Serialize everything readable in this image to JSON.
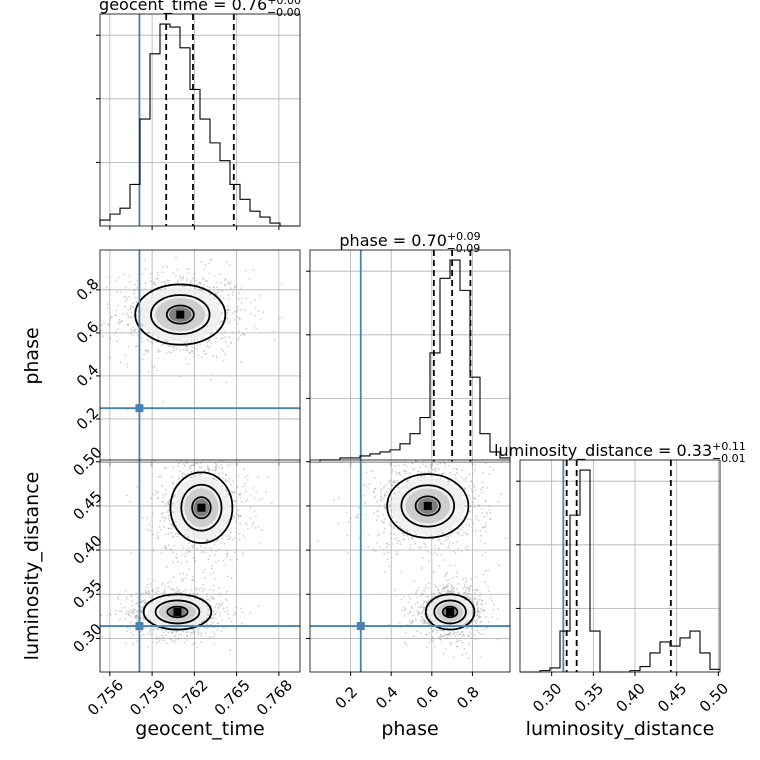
{
  "chart_data": {
    "type": "corner",
    "grid": true,
    "truth_color": "#4682b4",
    "params": [
      {
        "key": "geocent_time",
        "label": "geocent_time",
        "range": [
          0.7553,
          0.7695
        ],
        "ticks": [
          0.756,
          0.759,
          0.762,
          0.765,
          0.768
        ],
        "tick_labels": [
          "0.756",
          "0.759",
          "0.762",
          "0.765",
          "0.768"
        ],
        "truth": 0.7581,
        "title": {
          "main": "geocent_time = 0.76",
          "sup": "+0.00",
          "sub": "−0.00"
        },
        "quantiles": [
          0.76,
          0.7619,
          0.7648
        ],
        "hist": {
          "edges_start": 0.7553,
          "bin_width": 0.00071,
          "counts": [
            2,
            4,
            6,
            14,
            36,
            58,
            68,
            67,
            60,
            46,
            36,
            28,
            22,
            14,
            9,
            5,
            3,
            1,
            0,
            0
          ]
        }
      },
      {
        "key": "phase",
        "label": "phase",
        "range": [
          0.0,
          0.985
        ],
        "ticks": [
          0.2,
          0.4,
          0.6,
          0.8
        ],
        "tick_labels": [
          "0.2",
          "0.4",
          "0.6",
          "0.8"
        ],
        "truth": 0.25,
        "title": {
          "main": "phase = 0.70",
          "sup": "+0.09",
          "sub": "−0.09"
        },
        "quantiles": [
          0.61,
          0.7,
          0.79
        ],
        "hist": {
          "edges_start": 0.0,
          "bin_width": 0.04925,
          "counts": [
            0,
            1,
            1,
            2,
            2,
            3,
            4,
            5,
            6,
            9,
            14,
            22,
            54,
            91,
            100,
            85,
            42,
            14,
            5,
            2
          ]
        }
      },
      {
        "key": "luminosity_distance",
        "label": "luminosity_distance",
        "range": [
          0.262,
          0.502
        ],
        "ticks": [
          0.3,
          0.35,
          0.4,
          0.45,
          0.5
        ],
        "tick_labels": [
          "0.30",
          "0.35",
          "0.40",
          "0.45",
          "0.50"
        ],
        "truth": 0.314,
        "title": {
          "main": "luminosity_distance = 0.33",
          "sup": "+0.11",
          "sub": "−0.01"
        },
        "quantiles": [
          0.318,
          0.33,
          0.443
        ],
        "hist": {
          "edges_start": 0.262,
          "bin_width": 0.012,
          "counts": [
            0,
            0,
            1,
            3,
            30,
            115,
            148,
            30,
            0,
            0,
            0,
            1,
            4,
            14,
            22,
            19,
            25,
            30,
            14,
            2
          ]
        }
      }
    ],
    "panels_2d": [
      {
        "x": "geocent_time",
        "y": "phase",
        "modes": [
          {
            "cx": 0.761,
            "cy": 0.685,
            "sx": 0.0016,
            "sy": 0.07
          }
        ]
      },
      {
        "x": "geocent_time",
        "y": "luminosity_distance",
        "modes": [
          {
            "cx": 0.7608,
            "cy": 0.33,
            "sx": 0.0012,
            "sy": 0.01
          },
          {
            "cx": 0.7625,
            "cy": 0.448,
            "sx": 0.0011,
            "sy": 0.02
          }
        ]
      },
      {
        "x": "phase",
        "y": "luminosity_distance",
        "modes": [
          {
            "cx": 0.69,
            "cy": 0.33,
            "sx": 0.06,
            "sy": 0.01
          },
          {
            "cx": 0.58,
            "cy": 0.45,
            "sx": 0.1,
            "sy": 0.018
          }
        ]
      }
    ]
  }
}
